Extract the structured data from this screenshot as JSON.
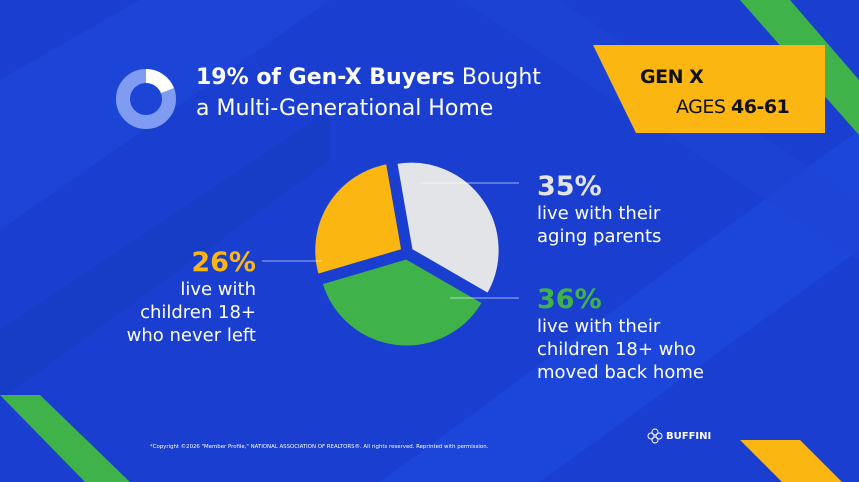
{
  "title": {
    "bold": "19% of Gen-X Buyers",
    "rest_line1": " Bought",
    "line2": "a Multi-Generational Home"
  },
  "title_donut_value": 0.19,
  "badge": {
    "line1": "GEN X",
    "line2_prefix": "AGES ",
    "line2_range": "46-61"
  },
  "chart_data": {
    "type": "pie",
    "slices": [
      {
        "label": "live with their aging parents",
        "value": 35,
        "color": "#e3e4e8"
      },
      {
        "label": "live with their children 18+ who moved back home",
        "value": 36,
        "color": "#3fb34a"
      },
      {
        "label": "live with children 18+ who never left",
        "value": 26,
        "color": "#fbb612"
      }
    ]
  },
  "labels": {
    "left": {
      "pct": "26%",
      "lines": [
        "live with",
        "children 18+",
        "who never left"
      ],
      "color": "#fbb612"
    },
    "top": {
      "pct": "35%",
      "lines": [
        "live with their",
        "aging parents"
      ],
      "color": "#e3e4e8"
    },
    "right": {
      "pct": "36%",
      "lines": [
        "live with their",
        "children 18+ who",
        "moved back home"
      ],
      "color": "#3fb34a"
    }
  },
  "copyright": "*Copyright ©2026 \"Member Profile,\" NATIONAL ASSOCIATION OF REALTORS®. All rights reserved. Reprinted with permission.",
  "logo": "BUFFINI"
}
